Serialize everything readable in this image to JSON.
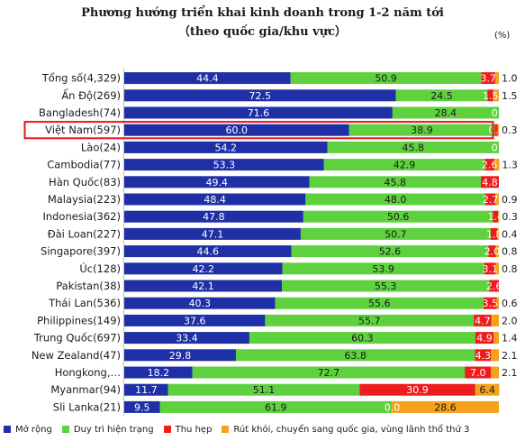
{
  "chart_data": {
    "type": "bar",
    "orientation": "horizontal",
    "stacked": true,
    "title": "Phương hướng triển khai kinh doanh trong 1-2 năm tới",
    "subtitle": "（theo quốc gia/khu vực）",
    "unit_label": "(%)",
    "xlim": [
      0,
      100
    ],
    "grid": false,
    "legend_position": "bottom",
    "categories": [
      "Tổng số(4,329)",
      "Ấn Độ(269)",
      "Bangladesh(74)",
      "Việt Nam(597)",
      "Lào(24)",
      "Cambodia(77)",
      "Hàn Quốc(83)",
      "Malaysia(223)",
      "Indonesia(362)",
      "Đài Loan(227)",
      "Singapore(397)",
      "Úc(128)",
      "Pakistan(38)",
      "Thái Lan(536)",
      "Philippines(149)",
      "Trung Quốc(697)",
      "New Zealand(47)",
      "Hongkong,…",
      "Myanmar(94)",
      "Sli Lanka(21)"
    ],
    "series": [
      {
        "name": "Mở rộng",
        "color": "#1f2fa6",
        "label_color": "#ffffff",
        "values": [
          44.4,
          72.5,
          71.6,
          60.0,
          54.2,
          53.3,
          49.4,
          48.4,
          47.8,
          47.1,
          44.6,
          42.2,
          42.1,
          40.3,
          37.6,
          33.4,
          29.8,
          18.2,
          11.7,
          9.5
        ],
        "labels": [
          "44.4",
          "72.5",
          "71.6",
          "60.0",
          "54.2",
          "53.3",
          "49.4",
          "48.4",
          "47.8",
          "47.1",
          "44.6",
          "42.2",
          "42.1",
          "40.3",
          "37.6",
          "33.4",
          "29.8",
          "18.2",
          "11.7",
          "9.5"
        ]
      },
      {
        "name": "Duy trì hiện trạng",
        "color": "#5fd13f",
        "label_color": "#1a1a1a",
        "values": [
          50.9,
          24.5,
          28.4,
          38.9,
          45.8,
          42.9,
          45.8,
          48.0,
          50.6,
          50.7,
          52.6,
          53.9,
          55.3,
          55.6,
          55.7,
          60.3,
          63.8,
          72.7,
          51.1,
          61.9
        ],
        "labels": [
          "50.9",
          "24.5",
          "28.4",
          "38.9",
          "45.8",
          "42.9",
          "45.8",
          "48.0",
          "50.6",
          "50.7",
          "52.6",
          "53.9",
          "55.3",
          "55.6",
          "55.7",
          "60.3",
          "63.8",
          "72.7",
          "51.1",
          "61.9"
        ]
      },
      {
        "name": "Thu hẹp",
        "color": "#ee1c1c",
        "label_color": "#ffffff",
        "values": [
          3.7,
          1.5,
          0.0,
          0.8,
          0.0,
          2.6,
          4.8,
          2.7,
          1.4,
          1.8,
          2.0,
          3.1,
          2.6,
          3.5,
          4.7,
          4.9,
          4.3,
          7.0,
          30.9,
          0.0
        ],
        "labels": [
          "3.7",
          "1.5",
          "0.0",
          "0.8",
          "0.0",
          "2.6",
          "4.8",
          "2.7",
          "1.4",
          "1.8",
          "2.0",
          "3.1",
          "2.6",
          "3.5",
          "4.7",
          "4.9",
          "4.3",
          "7.0",
          "30.9",
          "0.0"
        ]
      },
      {
        "name": "Rút khỏi, chuyển sang quốc gia, vùng lãnh thổ thứ 3",
        "color": "#f5a11a",
        "label_color": "#1a1a1a",
        "values": [
          1.0,
          1.5,
          0.0,
          0.3,
          0.0,
          1.3,
          0.0,
          0.9,
          0.3,
          0.4,
          0.8,
          0.8,
          0.0,
          0.6,
          2.0,
          1.4,
          2.1,
          2.1,
          6.4,
          28.6
        ],
        "labels": [
          "1.0",
          "1.5",
          "",
          "0.3",
          "",
          "1.3",
          "",
          "0.9",
          "0.3",
          "0.4",
          "0.8",
          "0.8",
          "",
          "0.6",
          "2.0",
          "1.4",
          "2.1",
          "2.1",
          "6.4",
          "28.6"
        ]
      }
    ],
    "highlighted_category": "Việt Nam(597)",
    "highlight_color": "#e8141c"
  },
  "legend": {
    "items": [
      {
        "label": "Mở rộng",
        "color": "#1f2fa6"
      },
      {
        "label": "Duy trì hiện trạng",
        "color": "#5fd13f"
      },
      {
        "label": "Thu hẹp",
        "color": "#ee1c1c"
      },
      {
        "label": "Rút khỏi, chuyển sang quốc gia, vùng lãnh thổ thứ 3",
        "color": "#f5a11a"
      }
    ]
  }
}
